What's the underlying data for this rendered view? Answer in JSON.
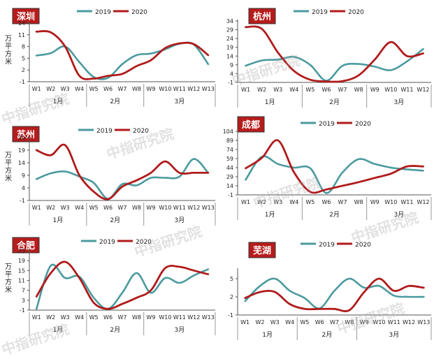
{
  "colors": {
    "s2019": "#4a9a9e",
    "s2020": "#b01b1b",
    "badge_bg": "#b71c1c",
    "badge_fg": "#ffffff",
    "axis": "#555555",
    "grid": "#999999"
  },
  "watermark": "中指研究院",
  "chart_data": [
    {
      "type": "line",
      "title": "深圳",
      "ylabel": "万平方米",
      "yticks": [
        "-1",
        "2",
        "5",
        "8",
        "11",
        "14"
      ],
      "ylim": [
        -1,
        14
      ],
      "x": [
        "W1",
        "W2",
        "W3",
        "W4",
        "W5",
        "W6",
        "W7",
        "W8",
        "W9",
        "W10",
        "W11",
        "W12",
        "W13"
      ],
      "months": [
        {
          "label": "1月",
          "from": 0,
          "to": 3
        },
        {
          "label": "2月",
          "from": 4,
          "to": 7
        },
        {
          "label": "3月",
          "from": 8,
          "to": 12
        }
      ],
      "series": [
        {
          "name": "2019",
          "values": [
            5.7,
            6.3,
            8.0,
            4.0,
            0.2,
            0.0,
            3.5,
            5.8,
            6.2,
            7.3,
            8.7,
            8.5,
            3.5
          ]
        },
        {
          "name": "2020",
          "values": [
            11.8,
            11.6,
            8.0,
            0.5,
            -0.2,
            0.5,
            1.0,
            3.0,
            4.5,
            7.6,
            8.8,
            8.6,
            5.8
          ]
        }
      ]
    },
    {
      "type": "line",
      "title": "杭州",
      "ylabel": "",
      "yticks": [
        "-1",
        "4",
        "9",
        "14",
        "19",
        "24",
        "29",
        "34"
      ],
      "ylim": [
        -1,
        34
      ],
      "x": [
        "W1",
        "W2",
        "W3",
        "W4",
        "W5",
        "W6",
        "W7",
        "W8",
        "W9",
        "W10",
        "W11",
        "W12"
      ],
      "months": [
        {
          "label": "1月",
          "from": 0,
          "to": 3
        },
        {
          "label": "2月",
          "from": 4,
          "to": 7
        },
        {
          "label": "3月",
          "from": 8,
          "to": 11
        }
      ],
      "series": [
        {
          "name": "2019",
          "values": [
            8.5,
            11.5,
            12.0,
            13.5,
            9.0,
            0.0,
            8.5,
            9.5,
            8.0,
            6.0,
            11.0,
            18.0
          ]
        },
        {
          "name": "2020",
          "values": [
            30.5,
            29.5,
            16.0,
            5.5,
            0.5,
            -0.5,
            -0.3,
            3.0,
            12.0,
            22.0,
            14.0,
            15.5
          ]
        }
      ]
    },
    {
      "type": "line",
      "title": "苏州",
      "ylabel": "万平方米",
      "yticks": [
        "-1",
        "4",
        "9",
        "14",
        "19",
        "24"
      ],
      "ylim": [
        -1,
        24
      ],
      "x": [
        "W1",
        "W2",
        "W3",
        "W4",
        "W5",
        "W6",
        "W7",
        "W8",
        "W9",
        "W10",
        "W11",
        "W12",
        "W13"
      ],
      "months": [
        {
          "label": "1月",
          "from": 0,
          "to": 3
        },
        {
          "label": "2月",
          "from": 4,
          "to": 7
        },
        {
          "label": "3月",
          "from": 8,
          "to": 12
        }
      ],
      "series": [
        {
          "name": "2019",
          "values": [
            7.5,
            9.8,
            10.5,
            8.5,
            6.0,
            -0.3,
            5.5,
            5.0,
            8.0,
            8.0,
            8.5,
            15.5,
            10.0
          ]
        },
        {
          "name": "2020",
          "values": [
            19.0,
            17.0,
            21.0,
            9.0,
            2.5,
            -0.5,
            4.5,
            7.0,
            10.0,
            14.5,
            10.0,
            10.0,
            10.0
          ]
        }
      ]
    },
    {
      "type": "line",
      "title": "成都",
      "ylabel": "",
      "yticks": [
        "-1",
        "14",
        "29",
        "44",
        "59",
        "74",
        "89",
        "104"
      ],
      "ylim": [
        -1,
        104
      ],
      "x": [
        "W1",
        "W2",
        "W3",
        "W4",
        "W5",
        "W6",
        "W7",
        "W8",
        "W9",
        "W10",
        "W11",
        "W12"
      ],
      "months": [
        {
          "label": "1月",
          "from": 0,
          "to": 3
        },
        {
          "label": "2月",
          "from": 4,
          "to": 7
        },
        {
          "label": "3月",
          "from": 8,
          "to": 11
        }
      ],
      "series": [
        {
          "name": "2019",
          "values": [
            24,
            62,
            50,
            44,
            43,
            2,
            36,
            58,
            50,
            44,
            41,
            39
          ]
        },
        {
          "name": "2020",
          "values": [
            43,
            60,
            89,
            36,
            4,
            8,
            14,
            20,
            27,
            34,
            46,
            46
          ]
        }
      ]
    },
    {
      "type": "line",
      "title": "合肥",
      "ylabel": "万平方米",
      "yticks": [
        "-1",
        "3",
        "7",
        "11",
        "15",
        "19",
        "23"
      ],
      "ylim": [
        -1,
        23
      ],
      "x": [
        "W1",
        "W2",
        "W3",
        "W4",
        "W5",
        "W6",
        "W7",
        "W8",
        "W9",
        "W10",
        "W11",
        "W12",
        "W13"
      ],
      "months": [
        {
          "label": "1月",
          "from": 0,
          "to": 3
        },
        {
          "label": "2月",
          "from": 4,
          "to": 7
        },
        {
          "label": "3月",
          "from": 8,
          "to": 12
        }
      ],
      "series": [
        {
          "name": "2019",
          "values": [
            -0.5,
            17.0,
            12.0,
            12.5,
            4.0,
            -0.5,
            6.0,
            14.0,
            6.0,
            12.0,
            10.0,
            13.0,
            15.5
          ]
        },
        {
          "name": "2020",
          "values": [
            4.5,
            14.0,
            18.5,
            12.0,
            2.0,
            -0.5,
            1.5,
            4.0,
            7.0,
            16.0,
            16.5,
            15.0,
            13.5
          ]
        }
      ]
    },
    {
      "type": "line",
      "title": "芜湖",
      "ylabel": "",
      "yticks": [
        "-1",
        "2",
        "5"
      ],
      "ylim": [
        -1,
        6.5
      ],
      "x": [
        "W1",
        "W2",
        "W3",
        "W4",
        "W5",
        "W6",
        "W7",
        "W8",
        "W9",
        "W10",
        "W11",
        "W12",
        "W13"
      ],
      "months": [
        {
          "label": "1月",
          "from": 0,
          "to": 3
        },
        {
          "label": "2月",
          "from": 4,
          "to": 7
        },
        {
          "label": "3月",
          "from": 8,
          "to": 12
        }
      ],
      "series": [
        {
          "name": "2019",
          "values": [
            1.3,
            3.8,
            5.0,
            3.0,
            1.8,
            0.1,
            3.0,
            5.0,
            3.5,
            3.8,
            2.2,
            2.0,
            2.0
          ]
        },
        {
          "name": "2020",
          "values": [
            1.8,
            2.8,
            2.8,
            0.8,
            0.0,
            0.0,
            0.0,
            -0.2,
            2.8,
            5.0,
            3.0,
            3.8,
            3.5
          ]
        }
      ]
    }
  ]
}
